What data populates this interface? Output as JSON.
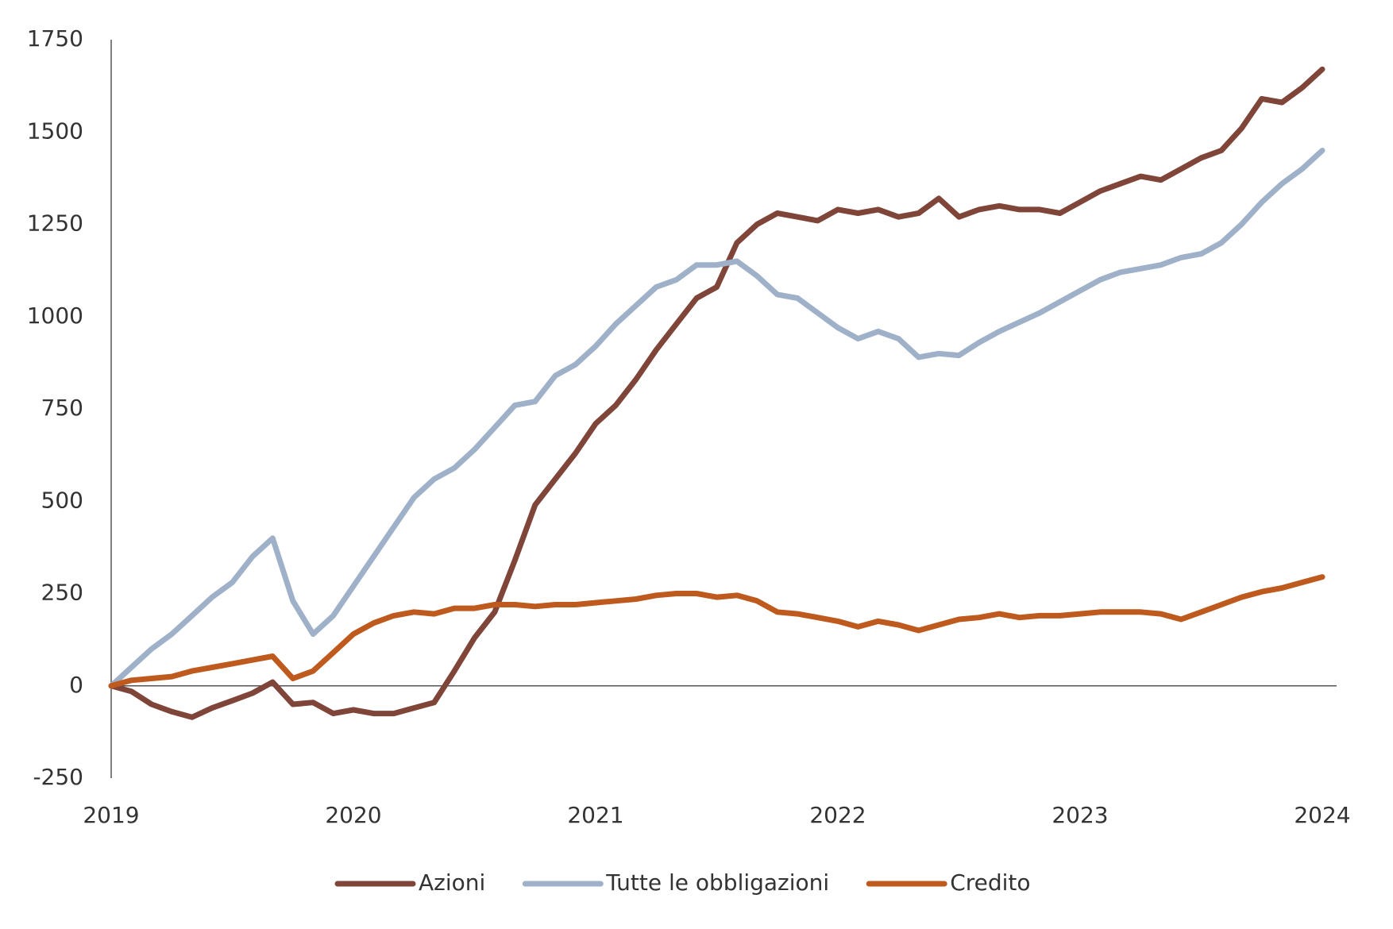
{
  "chart_data": {
    "type": "line",
    "x": [
      2019,
      2019.0833,
      2019.1667,
      2019.25,
      2019.3333,
      2019.4167,
      2019.5,
      2019.5833,
      2019.6667,
      2019.75,
      2019.8333,
      2019.9167,
      2020,
      2020.0833,
      2020.1667,
      2020.25,
      2020.3333,
      2020.4167,
      2020.5,
      2020.5833,
      2020.6667,
      2020.75,
      2020.8333,
      2020.9167,
      2021,
      2021.0833,
      2021.1667,
      2021.25,
      2021.3333,
      2021.4167,
      2021.5,
      2021.5833,
      2021.6667,
      2021.75,
      2021.8333,
      2021.9167,
      2022,
      2022.0833,
      2022.1667,
      2022.25,
      2022.3333,
      2022.4167,
      2022.5,
      2022.5833,
      2022.6667,
      2022.75,
      2022.8333,
      2022.9167,
      2023,
      2023.0833,
      2023.1667,
      2023.25,
      2023.3333,
      2023.4167,
      2023.5,
      2023.5833,
      2023.6667,
      2023.75,
      2023.8333,
      2023.9167,
      2024
    ],
    "series": [
      {
        "name": "Azioni",
        "color": "#7f4539",
        "values": [
          0,
          -15,
          -50,
          -70,
          -85,
          -60,
          -40,
          -20,
          10,
          -50,
          -45,
          -75,
          -65,
          -75,
          -75,
          -60,
          -45,
          40,
          130,
          200,
          340,
          490,
          560,
          630,
          710,
          760,
          830,
          910,
          980,
          1050,
          1080,
          1200,
          1250,
          1280,
          1270,
          1260,
          1290,
          1280,
          1290,
          1270,
          1280,
          1320,
          1270,
          1290,
          1300,
          1290,
          1290,
          1280,
          1310,
          1340,
          1360,
          1380,
          1370,
          1400,
          1430,
          1450,
          1510,
          1590,
          1580,
          1620,
          1670
        ]
      },
      {
        "name": "Tutte le obbligazioni",
        "color": "#9fb1c8",
        "values": [
          0,
          50,
          100,
          140,
          190,
          240,
          280,
          350,
          400,
          230,
          140,
          190,
          270,
          350,
          430,
          510,
          560,
          590,
          640,
          700,
          760,
          770,
          840,
          870,
          920,
          980,
          1030,
          1080,
          1100,
          1140,
          1140,
          1150,
          1110,
          1060,
          1050,
          1010,
          970,
          940,
          960,
          940,
          890,
          900,
          895,
          930,
          960,
          985,
          1010,
          1040,
          1070,
          1100,
          1120,
          1130,
          1140,
          1160,
          1170,
          1200,
          1250,
          1310,
          1360,
          1400,
          1450
        ]
      },
      {
        "name": "Credito",
        "color": "#bf5a1e",
        "values": [
          0,
          15,
          20,
          25,
          40,
          50,
          60,
          70,
          80,
          20,
          40,
          90,
          140,
          170,
          190,
          200,
          195,
          210,
          210,
          220,
          220,
          215,
          220,
          220,
          225,
          230,
          235,
          245,
          250,
          250,
          240,
          245,
          230,
          200,
          195,
          185,
          175,
          160,
          175,
          165,
          150,
          165,
          180,
          185,
          195,
          185,
          190,
          190,
          195,
          200,
          200,
          200,
          195,
          180,
          200,
          220,
          240,
          255,
          265,
          280,
          295
        ]
      }
    ],
    "xlim": [
      2019,
      2024
    ],
    "xticks": [
      2019,
      2020,
      2021,
      2022,
      2023,
      2024
    ],
    "ylim": [
      -250,
      1750
    ],
    "yticks": [
      -250,
      0,
      250,
      500,
      750,
      1000,
      1250,
      1500,
      1750
    ],
    "grid": false,
    "legend": "bottom"
  }
}
